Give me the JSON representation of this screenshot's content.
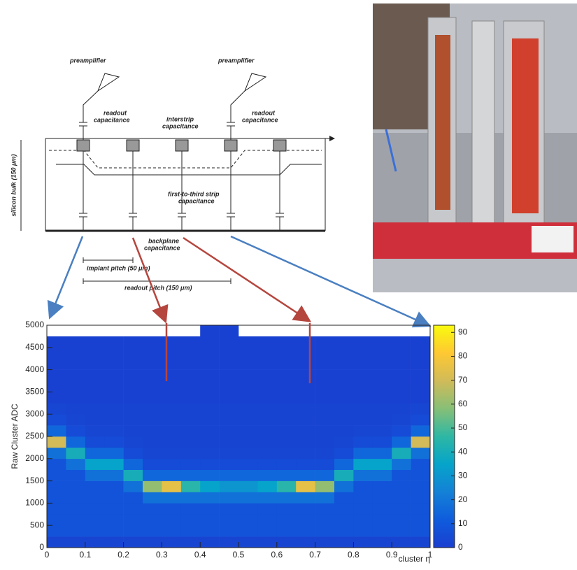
{
  "diagram": {
    "preamp_left": "preamplifier",
    "preamp_right": "preamplifier",
    "readout_cap_left": [
      "readout",
      "capacitance"
    ],
    "readout_cap_right": [
      "readout",
      "capacitance"
    ],
    "interstrip": [
      "interstrip",
      "capacitance"
    ],
    "bulk": "silicon bulk (150 μm)",
    "first_to_third": [
      "first-to-third strip",
      "capacitance"
    ],
    "backplane": [
      "backplane",
      "capacitance"
    ],
    "implant_pitch": "implant pitch (50 μm)",
    "readout_pitch": "readout pitch (150 μm)"
  },
  "chart_data": {
    "type": "heatmap",
    "xlabel": "cluster η",
    "ylabel": "Raw Cluster ADC",
    "xlim": [
      0,
      1
    ],
    "xticks": [
      0,
      0.1,
      0.2,
      0.3,
      0.4,
      0.5,
      0.6,
      0.7,
      0.8,
      0.9,
      1
    ],
    "ylim": [
      0,
      5000
    ],
    "yticks": [
      0,
      500,
      1000,
      1500,
      2000,
      2500,
      3000,
      3500,
      4000,
      4500,
      5000
    ],
    "zlim": [
      0,
      93
    ],
    "zticks": [
      0,
      10,
      20,
      30,
      40,
      50,
      60,
      70,
      80,
      90
    ],
    "colormap": [
      "#1a3fd0",
      "#0f5cdd",
      "#1481d6",
      "#06a4ca",
      "#2eb7a4",
      "#87bf77",
      "#d1bb59",
      "#fec832",
      "#f9fb0e"
    ],
    "xbins": [
      0,
      0.05,
      0.1,
      0.15,
      0.2,
      0.25,
      0.3,
      0.35,
      0.4,
      0.45,
      0.5,
      0.55,
      0.6,
      0.65,
      0.7,
      0.75,
      0.8,
      0.85,
      0.9,
      0.95,
      1
    ],
    "ybins": [
      0,
      250,
      500,
      750,
      1000,
      1250,
      1500,
      1750,
      2000,
      2250,
      2500,
      2750,
      3000,
      3250,
      3500,
      3750,
      4000,
      4250,
      4500,
      4750,
      5000
    ],
    "z": [
      [
        2,
        2,
        2,
        2,
        2,
        2,
        2,
        2,
        2,
        2,
        2,
        2,
        2,
        2,
        2,
        2,
        2,
        2,
        2,
        2
      ],
      [
        8,
        8,
        8,
        8,
        8,
        8,
        8,
        8,
        8,
        8,
        8,
        8,
        8,
        8,
        8,
        8,
        8,
        8,
        8,
        8
      ],
      [
        8,
        8,
        8,
        8,
        8,
        8,
        8,
        8,
        8,
        8,
        8,
        8,
        8,
        8,
        8,
        8,
        8,
        8,
        8,
        8
      ],
      [
        8,
        8,
        8,
        8,
        8,
        8,
        8,
        8,
        8,
        8,
        8,
        8,
        8,
        8,
        8,
        8,
        8,
        8,
        8,
        8
      ],
      [
        8,
        8,
        8,
        8,
        8,
        18,
        18,
        18,
        18,
        18,
        18,
        18,
        18,
        18,
        18,
        8,
        8,
        8,
        8,
        8
      ],
      [
        8,
        8,
        8,
        8,
        18,
        60,
        75,
        45,
        35,
        30,
        30,
        35,
        45,
        75,
        60,
        18,
        8,
        8,
        8,
        8
      ],
      [
        8,
        8,
        18,
        18,
        40,
        15,
        15,
        15,
        15,
        15,
        15,
        15,
        15,
        15,
        15,
        40,
        18,
        18,
        8,
        8
      ],
      [
        8,
        18,
        35,
        35,
        15,
        5,
        5,
        5,
        5,
        5,
        5,
        5,
        5,
        5,
        5,
        15,
        35,
        35,
        18,
        8
      ],
      [
        18,
        40,
        15,
        15,
        5,
        3,
        3,
        3,
        3,
        3,
        3,
        3,
        3,
        3,
        3,
        5,
        15,
        15,
        40,
        18
      ],
      [
        70,
        15,
        5,
        5,
        3,
        2,
        2,
        2,
        2,
        2,
        2,
        2,
        2,
        2,
        2,
        3,
        5,
        5,
        15,
        70
      ],
      [
        15,
        5,
        3,
        3,
        2,
        2,
        2,
        2,
        2,
        2,
        2,
        2,
        2,
        2,
        2,
        2,
        3,
        3,
        5,
        15
      ],
      [
        5,
        3,
        2,
        2,
        2,
        2,
        2,
        2,
        2,
        2,
        2,
        2,
        2,
        2,
        2,
        2,
        2,
        2,
        3,
        5
      ],
      [
        3,
        2,
        2,
        2,
        2,
        2,
        2,
        2,
        2,
        2,
        2,
        2,
        2,
        2,
        2,
        2,
        2,
        2,
        2,
        3
      ],
      [
        1,
        1,
        1,
        1,
        1,
        1,
        1,
        1,
        1,
        1,
        1,
        1,
        1,
        1,
        1,
        1,
        1,
        1,
        1,
        1
      ],
      [
        1,
        1,
        1,
        1,
        1,
        1,
        1,
        1,
        1,
        1,
        1,
        1,
        1,
        1,
        1,
        1,
        1,
        1,
        1,
        1
      ],
      [
        1,
        1,
        1,
        1,
        1,
        1,
        1,
        1,
        1,
        1,
        1,
        1,
        1,
        1,
        1,
        1,
        1,
        1,
        1,
        1
      ],
      [
        1,
        1,
        1,
        1,
        1,
        1,
        1,
        1,
        1,
        1,
        1,
        1,
        1,
        1,
        1,
        1,
        1,
        1,
        1,
        1
      ],
      [
        1,
        1,
        1,
        1,
        1,
        1,
        1,
        1,
        1,
        1,
        1,
        1,
        1,
        1,
        1,
        1,
        1,
        1,
        1,
        1
      ],
      [
        1,
        1,
        1,
        1,
        1,
        1,
        1,
        1,
        1,
        1,
        1,
        1,
        1,
        1,
        1,
        1,
        1,
        1,
        1,
        1
      ],
      [
        0,
        0,
        0,
        0,
        0,
        0,
        0,
        0,
        1,
        1,
        0,
        0,
        0,
        0,
        0,
        0,
        0,
        0,
        0,
        0
      ]
    ]
  }
}
